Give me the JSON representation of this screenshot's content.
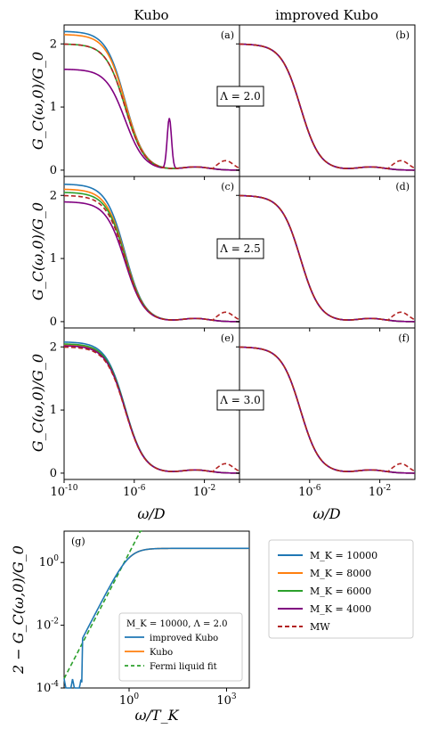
{
  "figure": {
    "column_titles": [
      "Kubo",
      "improved Kubo"
    ],
    "ylabel_top": "G_C(ω,0)/G_0",
    "xlabel_top": "ω/D",
    "xticks_top": [
      "10^{-10}",
      "10^{-6}",
      "10^{-2}"
    ],
    "yticks_top": [
      "0",
      "1",
      "2"
    ],
    "panel_tags": [
      "(a)",
      "(b)",
      "(c)",
      "(d)",
      "(e)",
      "(f)",
      "(g)"
    ],
    "lambda_labels": [
      "Λ = 2.0",
      "Λ = 2.5",
      "Λ = 3.0"
    ],
    "main_legend": [
      {
        "label": "M_K = 10000",
        "color": "#1f77b4",
        "dash": false
      },
      {
        "label": "M_K = 8000",
        "color": "#ff7f0e",
        "dash": false
      },
      {
        "label": "M_K = 6000",
        "color": "#2ca02c",
        "dash": false
      },
      {
        "label": "M_K = 4000",
        "color": "#800080",
        "dash": false
      },
      {
        "label": "MW",
        "color": "#b22222",
        "dash": true
      }
    ],
    "inset": {
      "ylabel": "2 − G_C(ω,0)/G_0",
      "xlabel": "ω/T_K",
      "xticks": [
        "10^{0}",
        "10^{3}"
      ],
      "yticks": [
        "10^{-4}",
        "10^{-2}",
        "10^{0}"
      ],
      "legend_title": "M_K = 10000, Λ = 2.0",
      "legend": [
        {
          "label": "improved Kubo",
          "color": "#1f77b4",
          "dash": false
        },
        {
          "label": "Kubo",
          "color": "#ff7f0e",
          "dash": false
        },
        {
          "label": "Fermi liquid fit",
          "color": "#2ca02c",
          "dash": true
        }
      ]
    }
  },
  "chart_data": [
    {
      "type": "line",
      "panel": "a",
      "xscale": "log",
      "xlim": [
        1e-10,
        1
      ],
      "ylim": [
        -0.1,
        2.3
      ],
      "series": [
        {
          "name": "M_K = 10000",
          "color": "#1f77b4",
          "plateau": 2.2,
          "kink_x": 3e-07,
          "fall": 1.0
        },
        {
          "name": "M_K = 8000",
          "color": "#ff7f0e",
          "plateau": 2.15,
          "kink_x": 3e-07,
          "fall": 1.0
        },
        {
          "name": "M_K = 6000",
          "color": "#2ca02c",
          "plateau": 2.0,
          "kink_x": 3e-07,
          "fall": 1.0
        },
        {
          "name": "M_K = 4000",
          "color": "#800080",
          "plateau": 1.6,
          "kink_x": 3e-07,
          "fall": 1.0,
          "bump_x": 0.0001,
          "bump_y": 0.8
        },
        {
          "name": "MW",
          "color": "#b22222",
          "dash": true,
          "plateau": 2.0,
          "kink_x": 3e-07,
          "fall": 1.0
        }
      ]
    },
    {
      "type": "line",
      "panel": "b",
      "xscale": "log",
      "xlim": [
        1e-10,
        1
      ],
      "ylim": [
        -0.1,
        2.3
      ],
      "series": [
        {
          "name": "M_K = 10000",
          "color": "#1f77b4",
          "plateau": 2.0,
          "kink_x": 3e-07,
          "fall": 1.0
        },
        {
          "name": "M_K = 8000",
          "color": "#ff7f0e",
          "plateau": 2.0,
          "kink_x": 3e-07,
          "fall": 1.0
        },
        {
          "name": "M_K = 6000",
          "color": "#2ca02c",
          "plateau": 2.0,
          "kink_x": 3e-07,
          "fall": 1.0
        },
        {
          "name": "M_K = 4000",
          "color": "#800080",
          "plateau": 2.0,
          "kink_x": 3e-07,
          "fall": 1.0
        },
        {
          "name": "MW",
          "color": "#b22222",
          "dash": true,
          "plateau": 2.0,
          "kink_x": 3e-07,
          "fall": 1.0
        }
      ]
    },
    {
      "type": "line",
      "panel": "c",
      "xscale": "log",
      "xlim": [
        1e-10,
        1
      ],
      "ylim": [
        -0.1,
        2.3
      ],
      "series": [
        {
          "name": "M_K = 10000",
          "color": "#1f77b4",
          "plateau": 2.18,
          "kink_x": 3e-07,
          "fall": 1.0
        },
        {
          "name": "M_K = 8000",
          "color": "#ff7f0e",
          "plateau": 2.1,
          "kink_x": 3e-07,
          "fall": 1.0
        },
        {
          "name": "M_K = 6000",
          "color": "#2ca02c",
          "plateau": 2.05,
          "kink_x": 3e-07,
          "fall": 1.0
        },
        {
          "name": "M_K = 4000",
          "color": "#800080",
          "plateau": 1.9,
          "kink_x": 3e-07,
          "fall": 1.0
        },
        {
          "name": "MW",
          "color": "#b22222",
          "dash": true,
          "plateau": 2.0,
          "kink_x": 3e-07,
          "fall": 1.0
        }
      ]
    },
    {
      "type": "line",
      "panel": "d",
      "xscale": "log",
      "xlim": [
        1e-10,
        1
      ],
      "ylim": [
        -0.1,
        2.3
      ],
      "series": [
        {
          "name": "M_K = 10000",
          "color": "#1f77b4",
          "plateau": 2.0,
          "kink_x": 3e-07,
          "fall": 1.0
        },
        {
          "name": "M_K = 8000",
          "color": "#ff7f0e",
          "plateau": 2.0,
          "kink_x": 3e-07,
          "fall": 1.0
        },
        {
          "name": "M_K = 6000",
          "color": "#2ca02c",
          "plateau": 2.0,
          "kink_x": 3e-07,
          "fall": 1.0
        },
        {
          "name": "M_K = 4000",
          "color": "#800080",
          "plateau": 2.0,
          "kink_x": 3e-07,
          "fall": 1.0
        },
        {
          "name": "MW",
          "color": "#b22222",
          "dash": true,
          "plateau": 2.0,
          "kink_x": 3e-07,
          "fall": 1.0
        }
      ]
    },
    {
      "type": "line",
      "panel": "e",
      "xscale": "log",
      "xlim": [
        1e-10,
        1
      ],
      "ylim": [
        -0.1,
        2.3
      ],
      "series": [
        {
          "name": "M_K = 10000",
          "color": "#1f77b4",
          "plateau": 2.08,
          "kink_x": 3e-07,
          "fall": 1.0
        },
        {
          "name": "M_K = 8000",
          "color": "#ff7f0e",
          "plateau": 2.03,
          "kink_x": 3e-07,
          "fall": 1.0
        },
        {
          "name": "M_K = 6000",
          "color": "#2ca02c",
          "plateau": 2.05,
          "kink_x": 3e-07,
          "fall": 1.0
        },
        {
          "name": "M_K = 4000",
          "color": "#800080",
          "plateau": 2.02,
          "kink_x": 3e-07,
          "fall": 1.0
        },
        {
          "name": "MW",
          "color": "#b22222",
          "dash": true,
          "plateau": 2.0,
          "kink_x": 3e-07,
          "fall": 1.0
        }
      ]
    },
    {
      "type": "line",
      "panel": "f",
      "xscale": "log",
      "xlim": [
        1e-10,
        1
      ],
      "ylim": [
        -0.1,
        2.3
      ],
      "series": [
        {
          "name": "M_K = 10000",
          "color": "#1f77b4",
          "plateau": 2.0,
          "kink_x": 3e-07,
          "fall": 1.0
        },
        {
          "name": "M_K = 8000",
          "color": "#ff7f0e",
          "plateau": 2.0,
          "kink_x": 3e-07,
          "fall": 1.0
        },
        {
          "name": "M_K = 6000",
          "color": "#2ca02c",
          "plateau": 2.0,
          "kink_x": 3e-07,
          "fall": 1.0
        },
        {
          "name": "M_K = 4000",
          "color": "#800080",
          "plateau": 2.0,
          "kink_x": 3e-07,
          "fall": 1.0
        },
        {
          "name": "MW",
          "color": "#b22222",
          "dash": true,
          "plateau": 2.0,
          "kink_x": 3e-07,
          "fall": 1.0
        }
      ]
    },
    {
      "type": "line",
      "panel": "g",
      "xscale": "log",
      "yscale": "log",
      "xlim": [
        0.01,
        5000
      ],
      "ylim": [
        0.0001,
        10
      ],
      "series": [
        {
          "name": "improved Kubo",
          "color": "#1f77b4"
        },
        {
          "name": "Kubo",
          "color": "#ff7f0e"
        },
        {
          "name": "Fermi liquid fit",
          "color": "#2ca02c",
          "dash": true
        }
      ]
    }
  ]
}
